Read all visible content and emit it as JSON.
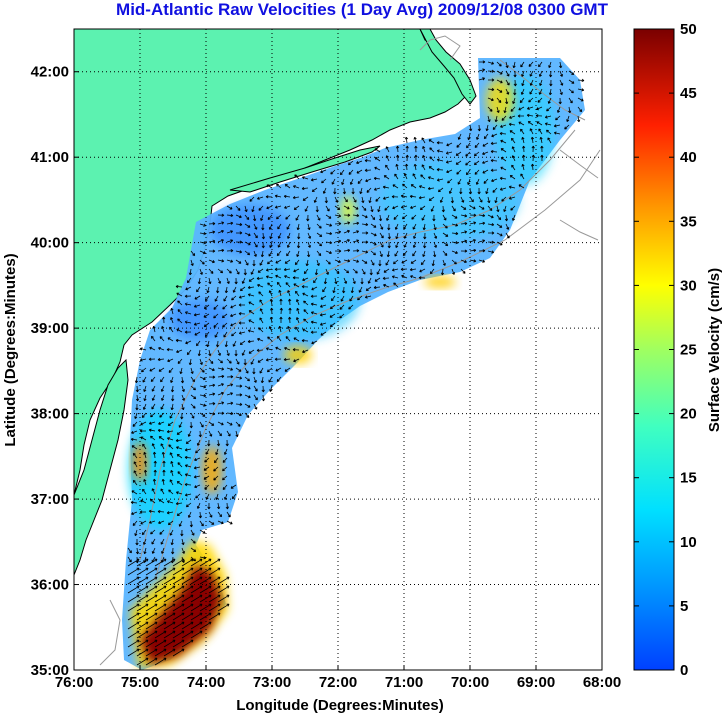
{
  "chart_data": {
    "type": "heatmap",
    "title": "Mid-Atlantic Raw Velocities (1 Day Avg) 2009/12/08 0300 GMT",
    "xlabel": "Longitude (Degrees:Minutes)",
    "ylabel": "Latitude (Degrees:Minutes)",
    "colorbar_label": "Surface Velocity (cm/s)",
    "x_ticks": [
      {
        "value": -76,
        "label": "76:00"
      },
      {
        "value": -75,
        "label": "75:00"
      },
      {
        "value": -74,
        "label": "74:00"
      },
      {
        "value": -73,
        "label": "73:00"
      },
      {
        "value": -72,
        "label": "72:00"
      },
      {
        "value": -71,
        "label": "71:00"
      },
      {
        "value": -70,
        "label": "70:00"
      },
      {
        "value": -69,
        "label": "69:00"
      },
      {
        "value": -68,
        "label": "68:00"
      }
    ],
    "y_ticks": [
      {
        "value": 35,
        "label": "35:00"
      },
      {
        "value": 36,
        "label": "36:00"
      },
      {
        "value": 37,
        "label": "37:00"
      },
      {
        "value": 38,
        "label": "38:00"
      },
      {
        "value": 39,
        "label": "39:00"
      },
      {
        "value": 40,
        "label": "40:00"
      },
      {
        "value": 41,
        "label": "41:00"
      },
      {
        "value": 42,
        "label": "42:00"
      }
    ],
    "xlim": [
      -76,
      -68
    ],
    "ylim": [
      35,
      42.5
    ],
    "colorbar_ticks": [
      0,
      5,
      10,
      15,
      20,
      25,
      30,
      35,
      40,
      45,
      50
    ],
    "colorbar_range": [
      0,
      50
    ],
    "colormap": "jet",
    "grid": "dotted",
    "colors": {
      "land": "#5cf2b0",
      "title": "#1010e0",
      "arrows": "#000000",
      "bathymetry": "#999999"
    }
  },
  "title_text": "Mid-Atlantic Raw Velocities (1 Day Avg) 2009/12/08 0300 GMT",
  "xlabel_text": "Longitude (Degrees:Minutes)",
  "ylabel_text": "Latitude (Degrees:Minutes)",
  "cb_label_text": "Surface Velocity (cm/s)"
}
